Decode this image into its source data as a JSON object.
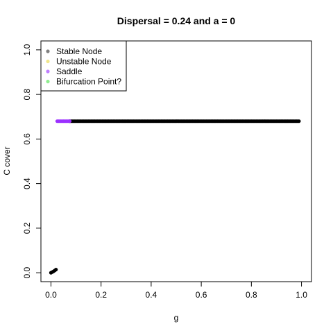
{
  "chart_data": {
    "type": "scatter",
    "title": "Dispersal =  0.24 and a = 0",
    "xlabel": "g",
    "ylabel": "C cover",
    "xlim": [
      -0.04,
      1.04
    ],
    "ylim": [
      -0.04,
      1.04
    ],
    "xticks": [
      "0.0",
      "0.2",
      "0.4",
      "0.6",
      "0.8",
      "1.0"
    ],
    "yticks": [
      "0.0",
      "0.2",
      "0.4",
      "0.6",
      "0.8",
      "1.0"
    ],
    "grid": false,
    "legend_position": "top-left",
    "legend": [
      {
        "label": "Stable Node",
        "color": "#808080"
      },
      {
        "label": "Unstable Node",
        "color": "#f0e68c"
      },
      {
        "label": "Saddle",
        "color": "#c080ff"
      },
      {
        "label": "Bifurcation Point?",
        "color": "#90ee90"
      }
    ],
    "series": [
      {
        "name": "Stable Node",
        "color": "#000000",
        "points": [
          [
            0.0,
            0.0
          ],
          [
            0.005,
            0.003
          ],
          [
            0.01,
            0.006
          ],
          [
            0.015,
            0.01
          ],
          [
            0.02,
            0.014
          ]
        ],
        "line_segment": {
          "x_start": 0.075,
          "x_end": 0.99,
          "step": 0.005,
          "y": 0.68
        }
      },
      {
        "name": "Saddle",
        "color": "#9b30ff",
        "line_segment": {
          "x_start": 0.025,
          "x_end": 0.075,
          "step": 0.005,
          "y": 0.68
        }
      }
    ]
  }
}
